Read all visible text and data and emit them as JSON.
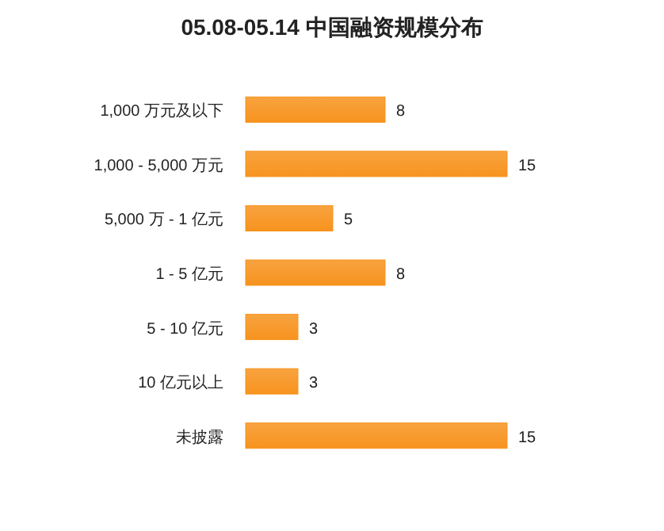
{
  "chart_data": {
    "type": "bar",
    "orientation": "horizontal",
    "title": "05.08-05.14 中国融资规模分布",
    "categories": [
      "1,000 万元及以下",
      "1,000 - 5,000 万元",
      "5,000 万 - 1 亿元",
      "1 - 5 亿元",
      "5 - 10 亿元",
      "10 亿元以上",
      "未披露"
    ],
    "values": [
      8,
      15,
      5,
      8,
      3,
      3,
      15
    ],
    "color": "#f7931e",
    "data_labels": true
  }
}
